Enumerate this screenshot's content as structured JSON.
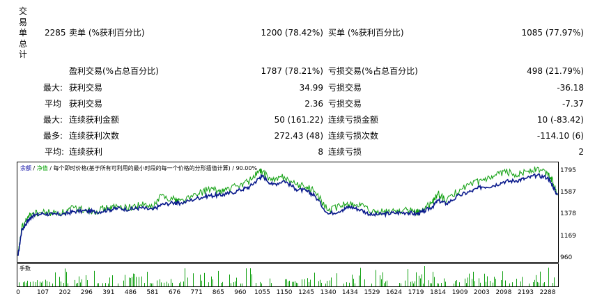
{
  "sidebar_label": [
    "交",
    "易",
    "单",
    "总",
    "计"
  ],
  "stats": {
    "total_trades": "2285",
    "short_label": "卖单 (%获利百分比)",
    "short_value": "1200 (78.42%)",
    "long_label": "买单 (%获利百分比)",
    "long_value": "1085 (77.97%)",
    "profit_trades_label": "盈利交易(%占总百分比)",
    "profit_trades_value": "1787 (78.21%)",
    "loss_trades_label": "亏损交易(%占总百分比)",
    "loss_trades_value": "498 (21.79%)",
    "largest_prefix": "最大:",
    "largest_profit_label": "获利交易",
    "largest_profit_value": "34.99",
    "largest_loss_label": "亏损交易",
    "largest_loss_value": "-36.18",
    "average_prefix": "平均",
    "average_profit_label": "获利交易",
    "average_profit_value": "2.36",
    "average_loss_label": "亏损交易",
    "average_loss_value": "-7.37",
    "max_prefix": "最大:",
    "max_consec_wins_label": "连续获利金额",
    "max_consec_wins_value": "50 (161.22)",
    "max_consec_losses_label": "连续亏损金额",
    "max_consec_losses_value": "10 (-83.42)",
    "maximal_prefix": "最多:",
    "maximal_consec_profit_label": "连续获利次数",
    "maximal_consec_profit_value": "272.43 (48)",
    "maximal_consec_loss_label": "连续亏损次数",
    "maximal_consec_loss_value": "-114.10 (6)",
    "avg_prefix": "平均:",
    "avg_consec_wins_label": "连续获利",
    "avg_consec_wins_value": "8",
    "avg_consec_losses_label": "连续亏损",
    "avg_consec_losses_value": "2"
  },
  "chart_header": {
    "balance": "余额",
    "sep1": " / ",
    "equity": "净值",
    "rest": " / 每个即时价格(基于所有可利用的最小时段的每一个价格的分形插值计算) / 90.00%"
  },
  "volume_label": "手数",
  "colors": {
    "balance": "#0a1a8c",
    "equity": "#11a011",
    "volume": "#11a011"
  },
  "chart_data": {
    "type": "line",
    "series": [
      {
        "name": "余额",
        "x": [
          0,
          15,
          40,
          60,
          107,
          150,
          202,
          240,
          296,
          340,
          391,
          430,
          486,
          530,
          581,
          620,
          676,
          700,
          771,
          820,
          865,
          900,
          960,
          1000,
          1040,
          1055,
          1100,
          1150,
          1200,
          1245,
          1280,
          1340,
          1400,
          1434,
          1480,
          1529,
          1580,
          1624,
          1680,
          1719,
          1750,
          1790,
          1814,
          1850,
          1909,
          1960,
          2003,
          2050,
          2098,
          2150,
          2193,
          2240,
          2288,
          2310,
          2330
        ],
        "y": [
          980,
          1220,
          1310,
          1360,
          1385,
          1375,
          1380,
          1405,
          1410,
          1400,
          1420,
          1435,
          1425,
          1440,
          1420,
          1470,
          1490,
          1480,
          1530,
          1555,
          1560,
          1570,
          1610,
          1640,
          1720,
          1745,
          1660,
          1700,
          1620,
          1600,
          1560,
          1380,
          1420,
          1450,
          1420,
          1370,
          1380,
          1390,
          1395,
          1380,
          1400,
          1450,
          1510,
          1480,
          1560,
          1600,
          1640,
          1650,
          1690,
          1700,
          1720,
          1750,
          1730,
          1650,
          1560
        ]
      },
      {
        "name": "净值",
        "x": [
          0,
          15,
          40,
          60,
          107,
          150,
          202,
          240,
          296,
          340,
          391,
          430,
          486,
          530,
          581,
          620,
          676,
          700,
          771,
          820,
          865,
          900,
          960,
          1000,
          1040,
          1055,
          1100,
          1150,
          1200,
          1245,
          1280,
          1340,
          1400,
          1434,
          1480,
          1529,
          1580,
          1624,
          1680,
          1719,
          1750,
          1790,
          1814,
          1850,
          1909,
          1960,
          2003,
          2050,
          2098,
          2150,
          2193,
          2240,
          2288,
          2310,
          2330
        ],
        "y": [
          980,
          1240,
          1340,
          1380,
          1395,
          1390,
          1395,
          1440,
          1420,
          1410,
          1440,
          1450,
          1440,
          1470,
          1440,
          1560,
          1520,
          1510,
          1560,
          1620,
          1600,
          1610,
          1660,
          1700,
          1790,
          1780,
          1700,
          1740,
          1660,
          1640,
          1600,
          1410,
          1460,
          1480,
          1460,
          1390,
          1400,
          1410,
          1420,
          1395,
          1420,
          1490,
          1580,
          1500,
          1620,
          1660,
          1700,
          1720,
          1790,
          1760,
          1790,
          1810,
          1770,
          1700,
          1580
        ]
      }
    ],
    "volume": {
      "name": "手数",
      "x_range": [
        0,
        2330
      ]
    },
    "y_ticks": [
      "1795",
      "1587",
      "1378",
      "1169",
      "960"
    ],
    "x_ticks": [
      "0",
      "107",
      "202",
      "296",
      "391",
      "486",
      "581",
      "676",
      "771",
      "865",
      "960",
      "1055",
      "1150",
      "1245",
      "1340",
      "1434",
      "1529",
      "1624",
      "1719",
      "1814",
      "1909",
      "2003",
      "2098",
      "2193",
      "2288"
    ],
    "ylim": [
      960,
      1795
    ],
    "xlim": [
      0,
      2330
    ]
  }
}
